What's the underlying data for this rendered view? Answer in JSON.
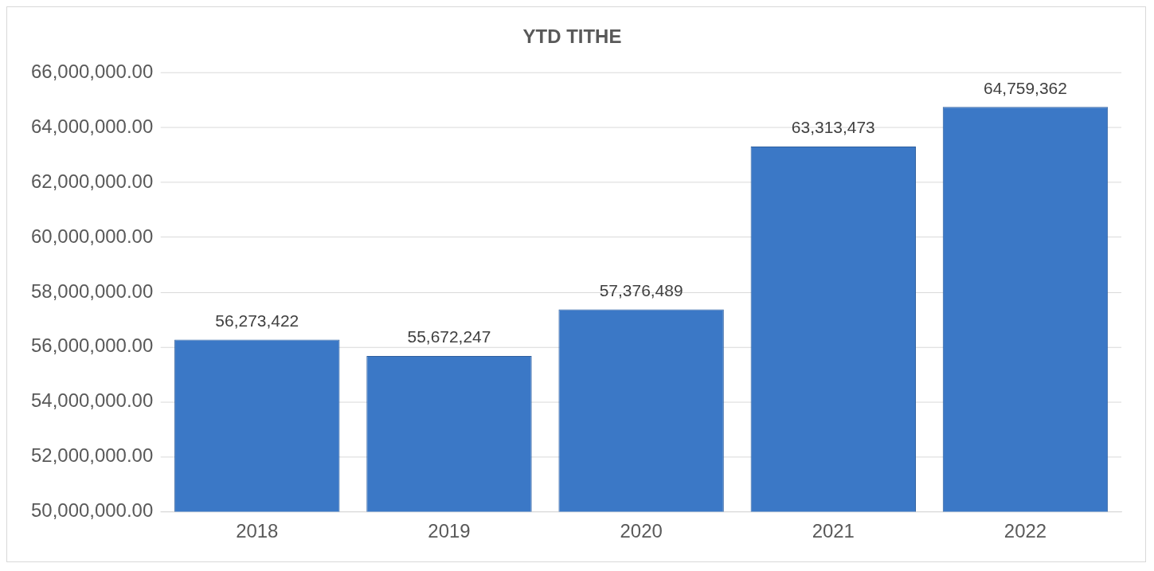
{
  "chart_data": {
    "type": "bar",
    "title": "YTD TITHE",
    "categories": [
      "2018",
      "2019",
      "2020",
      "2021",
      "2022"
    ],
    "values": [
      56273422,
      55672247,
      57376489,
      63313473,
      64759362
    ],
    "value_labels": [
      "56,273,422",
      "55,672,247",
      "57,376,489",
      "63,313,473",
      "64,759,362"
    ],
    "color": "#3b78c6",
    "ylim": [
      50000000,
      66000000
    ],
    "yticks": [
      {
        "value": 50000000,
        "label": "50,000,000.00"
      },
      {
        "value": 52000000,
        "label": "52,000,000.00"
      },
      {
        "value": 54000000,
        "label": "54,000,000.00"
      },
      {
        "value": 56000000,
        "label": "56,000,000.00"
      },
      {
        "value": 58000000,
        "label": "58,000,000.00"
      },
      {
        "value": 60000000,
        "label": "60,000,000.00"
      },
      {
        "value": 62000000,
        "label": "62,000,000.00"
      },
      {
        "value": 64000000,
        "label": "64,000,000.00"
      },
      {
        "value": 66000000,
        "label": "66,000,000.00"
      }
    ],
    "grid": "y",
    "legend": false
  }
}
